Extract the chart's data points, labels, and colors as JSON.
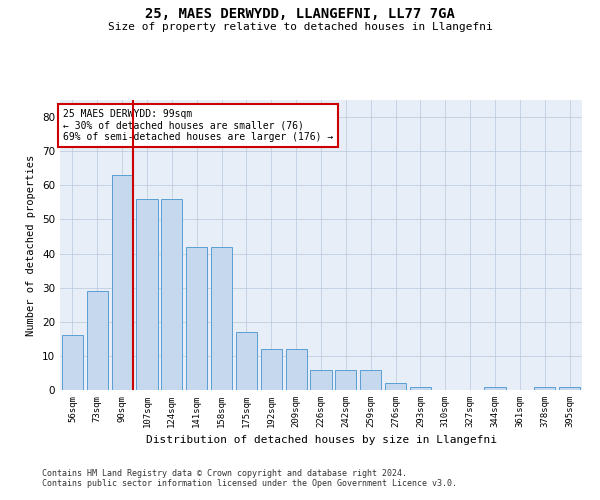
{
  "title": "25, MAES DERWYDD, LLANGEFNI, LL77 7GA",
  "subtitle": "Size of property relative to detached houses in Llangefni",
  "xlabel": "Distribution of detached houses by size in Llangefni",
  "ylabel": "Number of detached properties",
  "categories": [
    "56sqm",
    "73sqm",
    "90sqm",
    "107sqm",
    "124sqm",
    "141sqm",
    "158sqm",
    "175sqm",
    "192sqm",
    "209sqm",
    "226sqm",
    "242sqm",
    "259sqm",
    "276sqm",
    "293sqm",
    "310sqm",
    "327sqm",
    "344sqm",
    "361sqm",
    "378sqm",
    "395sqm"
  ],
  "values": [
    16,
    29,
    63,
    56,
    56,
    42,
    42,
    17,
    12,
    12,
    6,
    6,
    6,
    2,
    1,
    0,
    0,
    1,
    0,
    1,
    1
  ],
  "bar_color": "#c5d8ed",
  "bar_edge_color": "#5a9fd4",
  "ylim": [
    0,
    85
  ],
  "yticks": [
    0,
    10,
    20,
    30,
    40,
    50,
    60,
    70,
    80
  ],
  "annotation_text": "25 MAES DERWYDD: 99sqm\n← 30% of detached houses are smaller (76)\n69% of semi-detached houses are larger (176) →",
  "annotation_box_color": "#ffffff",
  "annotation_box_edge": "#cc0000",
  "footer1": "Contains HM Land Registry data © Crown copyright and database right 2024.",
  "footer2": "Contains public sector information licensed under the Open Government Licence v3.0.",
  "background_color": "#e8eef7"
}
